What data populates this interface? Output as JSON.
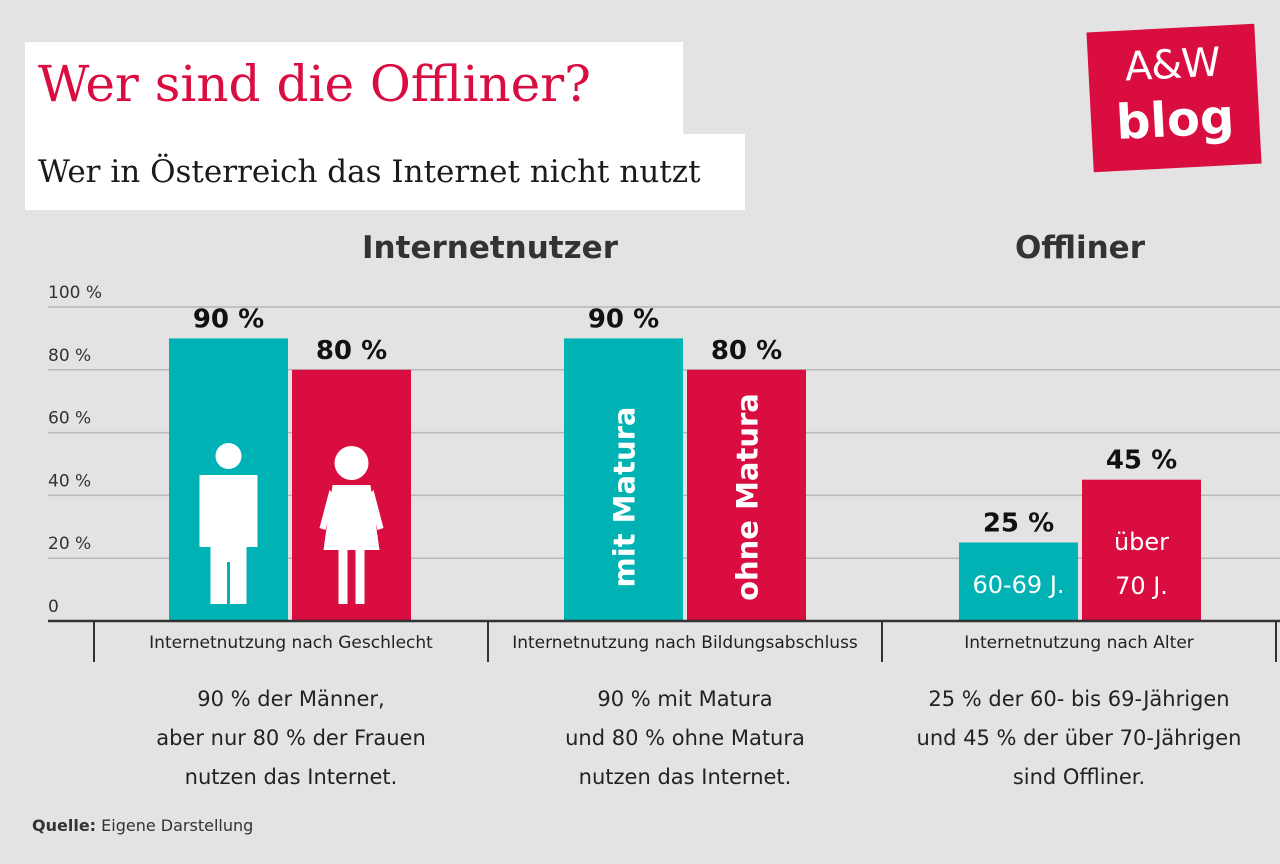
{
  "header": {
    "title": "Wer sind die Offliner?",
    "subtitle": "Wer in Österreich das Internet nicht nutzt"
  },
  "logo": {
    "line1": "A&W",
    "line2": "blog",
    "color": "#d90d40"
  },
  "headings": {
    "users": "Internetnutzer",
    "offline": "Offliner"
  },
  "colors": {
    "teal": "#00b2b3",
    "red": "#d90d40",
    "grid": "#b7b7b7",
    "axis": "#333333"
  },
  "chart_data": {
    "type": "bar",
    "ylim": [
      0,
      100
    ],
    "yticks": [
      {
        "value": 0,
        "label": "0"
      },
      {
        "value": 20,
        "label": "20 %"
      },
      {
        "value": 40,
        "label": "40 %"
      },
      {
        "value": 60,
        "label": "60 %"
      },
      {
        "value": 80,
        "label": "80 %"
      },
      {
        "value": 100,
        "label": "100 %"
      }
    ],
    "groups": [
      {
        "label": "Internetnutzung nach Geschlecht",
        "description": [
          "90 % der Männer,",
          "aber nur 80 % der Frauen",
          "nutzen das Internet."
        ],
        "bars": [
          {
            "value": 90,
            "value_label": "90 %",
            "color": "#00b2b3",
            "icon": "male-icon",
            "inner_label": [],
            "inner_vertical": ""
          },
          {
            "value": 80,
            "value_label": "80 %",
            "color": "#d90d40",
            "icon": "female-icon",
            "inner_label": [],
            "inner_vertical": ""
          }
        ]
      },
      {
        "label": "Internetnutzung nach Bildungsabschluss",
        "description": [
          "90 % mit Matura",
          "und 80 % ohne Matura",
          "nutzen das Internet."
        ],
        "bars": [
          {
            "value": 90,
            "value_label": "90 %",
            "color": "#00b2b3",
            "icon": "",
            "inner_label": [],
            "inner_vertical": "mit Matura"
          },
          {
            "value": 80,
            "value_label": "80 %",
            "color": "#d90d40",
            "icon": "",
            "inner_label": [],
            "inner_vertical": "ohne Matura"
          }
        ]
      },
      {
        "label": "Internetnutzung nach Alter",
        "description": [
          "25 % der 60- bis 69-Jährigen",
          "und 45 % der über 70-Jährigen",
          "sind Offliner."
        ],
        "bars": [
          {
            "value": 25,
            "value_label": "25 %",
            "color": "#00b2b3",
            "icon": "",
            "inner_label": [
              "60-69 J."
            ],
            "inner_vertical": ""
          },
          {
            "value": 45,
            "value_label": "45 %",
            "color": "#d90d40",
            "icon": "",
            "inner_label": [
              "über",
              "70 J."
            ],
            "inner_vertical": ""
          }
        ]
      }
    ]
  },
  "source": {
    "prefix": "Quelle:",
    "text": "Eigene Darstellung"
  }
}
